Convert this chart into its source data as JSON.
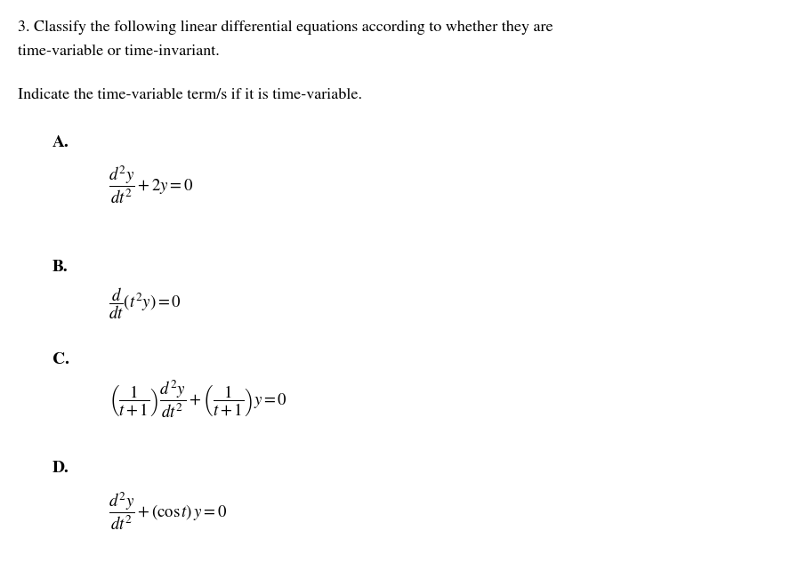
{
  "background_color": "#ffffff",
  "title_line1": "3. Classify the following linear differential equations according to whether they are",
  "title_line2": "time-variable or time-invariant.",
  "subtitle": "Indicate the time-variable term/s if it is time-variable.",
  "label_A": "A.",
  "label_B": "B.",
  "label_C": "C.",
  "label_D": "D.",
  "eq_A": "$\\dfrac{d^2y}{dt^2} + 2y = 0$",
  "eq_B": "$\\dfrac{d}{dt}(t^2 y) = 0$",
  "eq_C": "$\\left(\\dfrac{1}{t+1}\\right)\\dfrac{d^2y}{dt^2} + \\left(\\dfrac{1}{t+1}\\right)y = 0$",
  "eq_D": "$\\dfrac{d^2y}{dt^2} + (\\cos t)\\, y = 0$",
  "font_size_body": 13,
  "font_size_label": 14,
  "font_size_eq": 13.5,
  "fig_width": 9.07,
  "fig_height": 6.6,
  "dpi": 100
}
